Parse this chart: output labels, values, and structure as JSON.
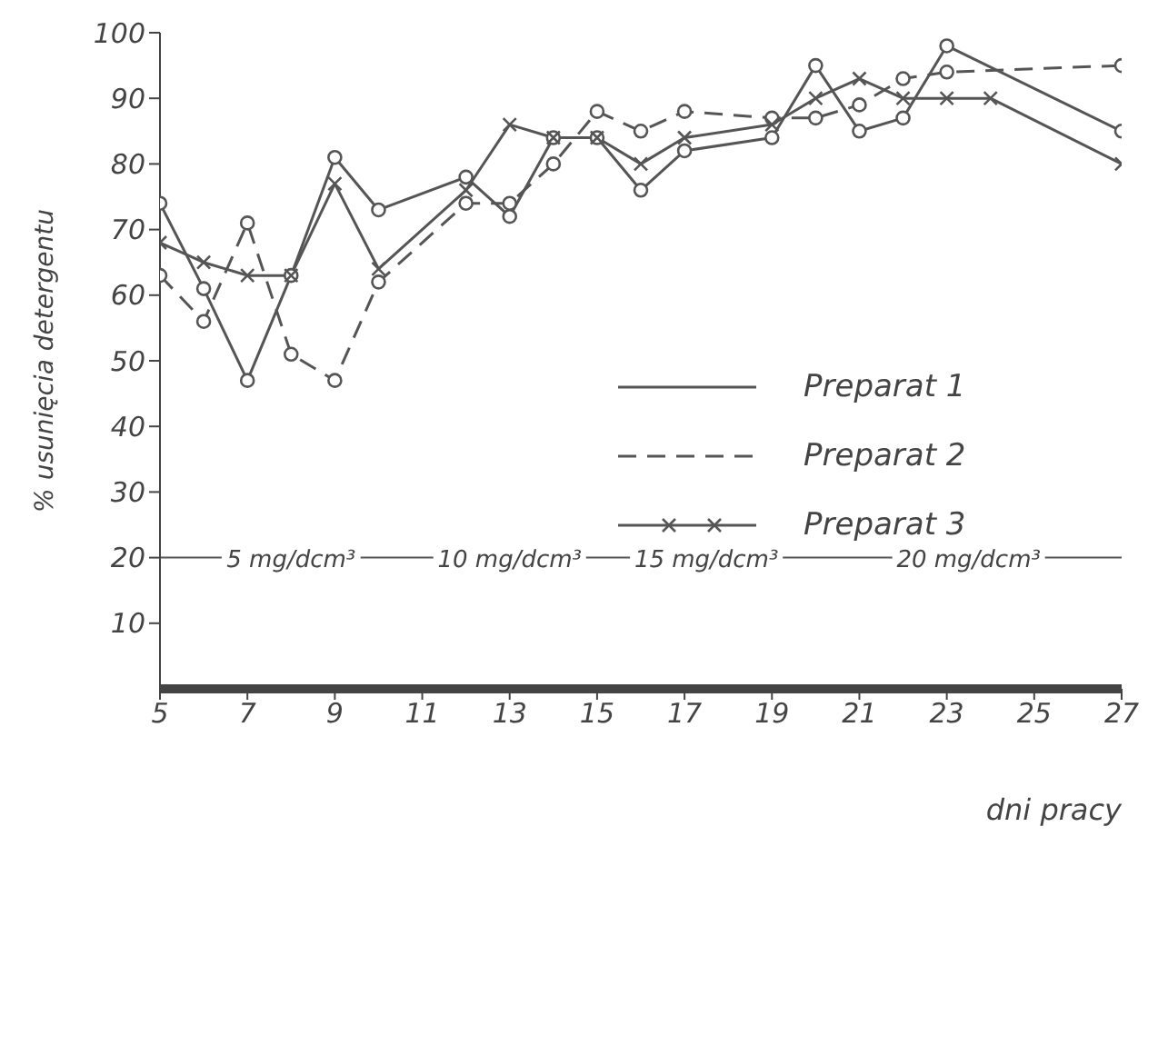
{
  "chart_data": {
    "type": "line",
    "xlabel": "dni pracy",
    "ylabel": "% usunięcia detergentu",
    "xlim": [
      5,
      27
    ],
    "xticks": [
      5,
      7,
      9,
      11,
      13,
      15,
      17,
      19,
      21,
      23,
      25,
      27
    ],
    "ylim": [
      0,
      100
    ],
    "yticks": [
      10,
      20,
      30,
      40,
      50,
      60,
      70,
      80,
      90,
      100
    ],
    "grid": false,
    "legend": "right",
    "series": [
      {
        "name": "Preparat 1",
        "color": "#555555",
        "marker": "circle",
        "line_style": "solid",
        "x": [
          5,
          6,
          7,
          8,
          9,
          10,
          12,
          13,
          14,
          15,
          16,
          17,
          19,
          20,
          21,
          22,
          23,
          27
        ],
        "values": [
          74,
          61,
          47,
          63,
          81,
          73,
          78,
          72,
          84,
          84,
          76,
          82,
          84,
          95,
          85,
          87,
          98,
          85
        ]
      },
      {
        "name": "Preparat 2",
        "color": "#555555",
        "marker": "circle",
        "line_style": "dashed",
        "x": [
          5,
          6,
          7,
          8,
          9,
          10,
          12,
          13,
          14,
          15,
          16,
          17,
          19,
          20,
          21,
          22,
          23,
          27
        ],
        "values": [
          63,
          56,
          71,
          51,
          47,
          62,
          74,
          74,
          80,
          88,
          85,
          88,
          87,
          87,
          89,
          93,
          94,
          95
        ]
      },
      {
        "name": "Preparat 3",
        "color": "#555555",
        "marker": "cross",
        "line_style": "solid",
        "x": [
          5,
          6,
          7,
          8,
          9,
          10,
          12,
          13,
          14,
          15,
          16,
          17,
          19,
          20,
          21,
          22,
          23,
          24,
          27
        ],
        "values": [
          68,
          65,
          63,
          63,
          77,
          64,
          76,
          86,
          84,
          84,
          80,
          84,
          86,
          90,
          93,
          90,
          90,
          90,
          80
        ]
      }
    ],
    "ref_lines": [
      {
        "axis": "y",
        "value": 20,
        "color": "#555555"
      }
    ],
    "annotations": [
      {
        "text": "5 mg/dcm³",
        "x": 8,
        "y": 20
      },
      {
        "text": "10 mg/dcm³",
        "x": 13,
        "y": 20
      },
      {
        "text": "15 mg/dcm³",
        "x": 17.5,
        "y": 20
      },
      {
        "text": "20 mg/dcm³",
        "x": 23.5,
        "y": 20
      }
    ]
  }
}
